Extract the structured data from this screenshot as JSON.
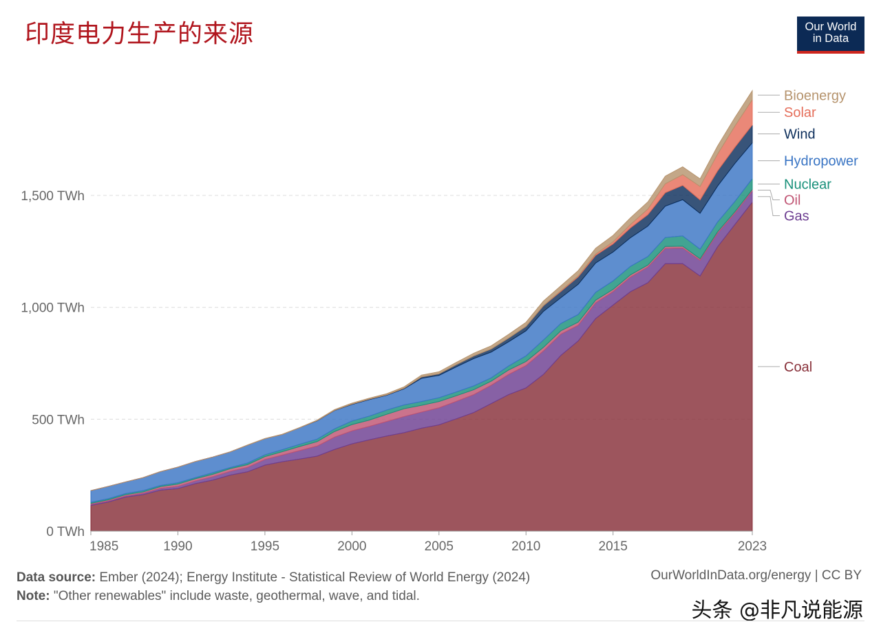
{
  "title": "印度电力生产的来源",
  "logo": {
    "line1": "Our World",
    "line2": "in Data"
  },
  "footer": {
    "source_label": "Data source:",
    "source_text": " Ember (2024); Energy Institute - Statistical Review of World Energy (2024)",
    "note_label": "Note:",
    "note_text": " \"Other renewables\" include waste, geothermal, wave, and tidal.",
    "right_text": "OurWorldInData.org/energy | CC BY"
  },
  "watermark": "头条 @非凡说能源",
  "chart_data": {
    "type": "area",
    "stacked": true,
    "x": [
      1985,
      1986,
      1987,
      1988,
      1989,
      1990,
      1991,
      1992,
      1993,
      1994,
      1995,
      1996,
      1997,
      1998,
      1999,
      2000,
      2001,
      2002,
      2003,
      2004,
      2005,
      2006,
      2007,
      2008,
      2009,
      2010,
      2011,
      2012,
      2013,
      2014,
      2015,
      2016,
      2017,
      2018,
      2019,
      2020,
      2021,
      2022,
      2023
    ],
    "x_ticks": [
      "1985",
      "1990",
      "1995",
      "2000",
      "2005",
      "2010",
      "2015",
      "2023"
    ],
    "y_ticks": [
      "0 TWh",
      "500 TWh",
      "1,000 TWh",
      "1,500 TWh"
    ],
    "y_tick_values": [
      0,
      500,
      1000,
      1500
    ],
    "ylim": [
      0,
      2000
    ],
    "grid": true,
    "series": [
      {
        "name": "Coal",
        "color": "#883039",
        "values": [
          115,
          130,
          152,
          163,
          183,
          190,
          212,
          228,
          250,
          265,
          295,
          310,
          322,
          335,
          365,
          390,
          408,
          425,
          440,
          460,
          475,
          502,
          530,
          570,
          610,
          640,
          700,
          785,
          850,
          950,
          1010,
          1070,
          1110,
          1195,
          1195,
          1140,
          1270,
          1370,
          1470
        ]
      },
      {
        "name": "Gas",
        "color": "#6d3e91",
        "values": [
          5,
          5,
          5,
          6,
          8,
          10,
          12,
          15,
          17,
          20,
          25,
          30,
          38,
          45,
          55,
          58,
          60,
          65,
          72,
          72,
          76,
          78,
          80,
          82,
          90,
          100,
          105,
          95,
          70,
          70,
          60,
          65,
          70,
          68,
          70,
          70,
          60,
          50,
          50
        ]
      },
      {
        "name": "Oil",
        "color": "#c05473",
        "values": [
          4,
          5,
          6,
          6,
          8,
          10,
          10,
          11,
          12,
          12,
          13,
          15,
          18,
          20,
          25,
          28,
          28,
          32,
          35,
          30,
          28,
          25,
          22,
          18,
          20,
          18,
          16,
          15,
          14,
          12,
          10,
          10,
          9,
          9,
          8,
          7,
          7,
          7,
          7
        ]
      },
      {
        "name": "Nuclear",
        "color": "#18907a",
        "values": [
          5,
          5,
          5,
          6,
          5,
          6,
          5,
          7,
          5,
          7,
          8,
          9,
          10,
          11,
          12,
          16,
          18,
          19,
          17,
          17,
          17,
          17,
          17,
          15,
          18,
          25,
          33,
          33,
          34,
          35,
          38,
          38,
          38,
          40,
          46,
          43,
          44,
          46,
          48
        ]
      },
      {
        "name": "Hydropower",
        "color": "#3a75c4",
        "values": [
          52,
          55,
          52,
          58,
          62,
          70,
          72,
          70,
          70,
          80,
          72,
          68,
          74,
          82,
          82,
          74,
          74,
          66,
          72,
          104,
          100,
          112,
          122,
          115,
          108,
          112,
          128,
          115,
          135,
          131,
          129,
          128,
          136,
          140,
          162,
          160,
          160,
          170,
          160
        ]
      },
      {
        "name": "Wind",
        "color": "#0c2e5b",
        "values": [
          0,
          0,
          0,
          0,
          0,
          0,
          0,
          0,
          0,
          0,
          0,
          0,
          0,
          1,
          1,
          2,
          2,
          2,
          3,
          6,
          7,
          10,
          12,
          14,
          17,
          20,
          25,
          28,
          33,
          34,
          36,
          44,
          51,
          60,
          64,
          60,
          68,
          72,
          80
        ]
      },
      {
        "name": "Solar",
        "color": "#e56e5a",
        "values": [
          0,
          0,
          0,
          0,
          0,
          0,
          0,
          0,
          0,
          0,
          0,
          0,
          0,
          0,
          0,
          0,
          0,
          0,
          0,
          0,
          0,
          0,
          0,
          0,
          0,
          0,
          1,
          3,
          4,
          6,
          10,
          15,
          25,
          40,
          48,
          60,
          75,
          95,
          113
        ]
      },
      {
        "name": "Bioenergy",
        "color": "#b6946e",
        "values": [
          0,
          0,
          0,
          0,
          0,
          0,
          0,
          0,
          0,
          1,
          1,
          1,
          1,
          2,
          3,
          4,
          4,
          5,
          6,
          8,
          9,
          10,
          12,
          14,
          16,
          18,
          20,
          22,
          24,
          26,
          28,
          30,
          32,
          34,
          35,
          34,
          36,
          38,
          40
        ]
      }
    ]
  }
}
